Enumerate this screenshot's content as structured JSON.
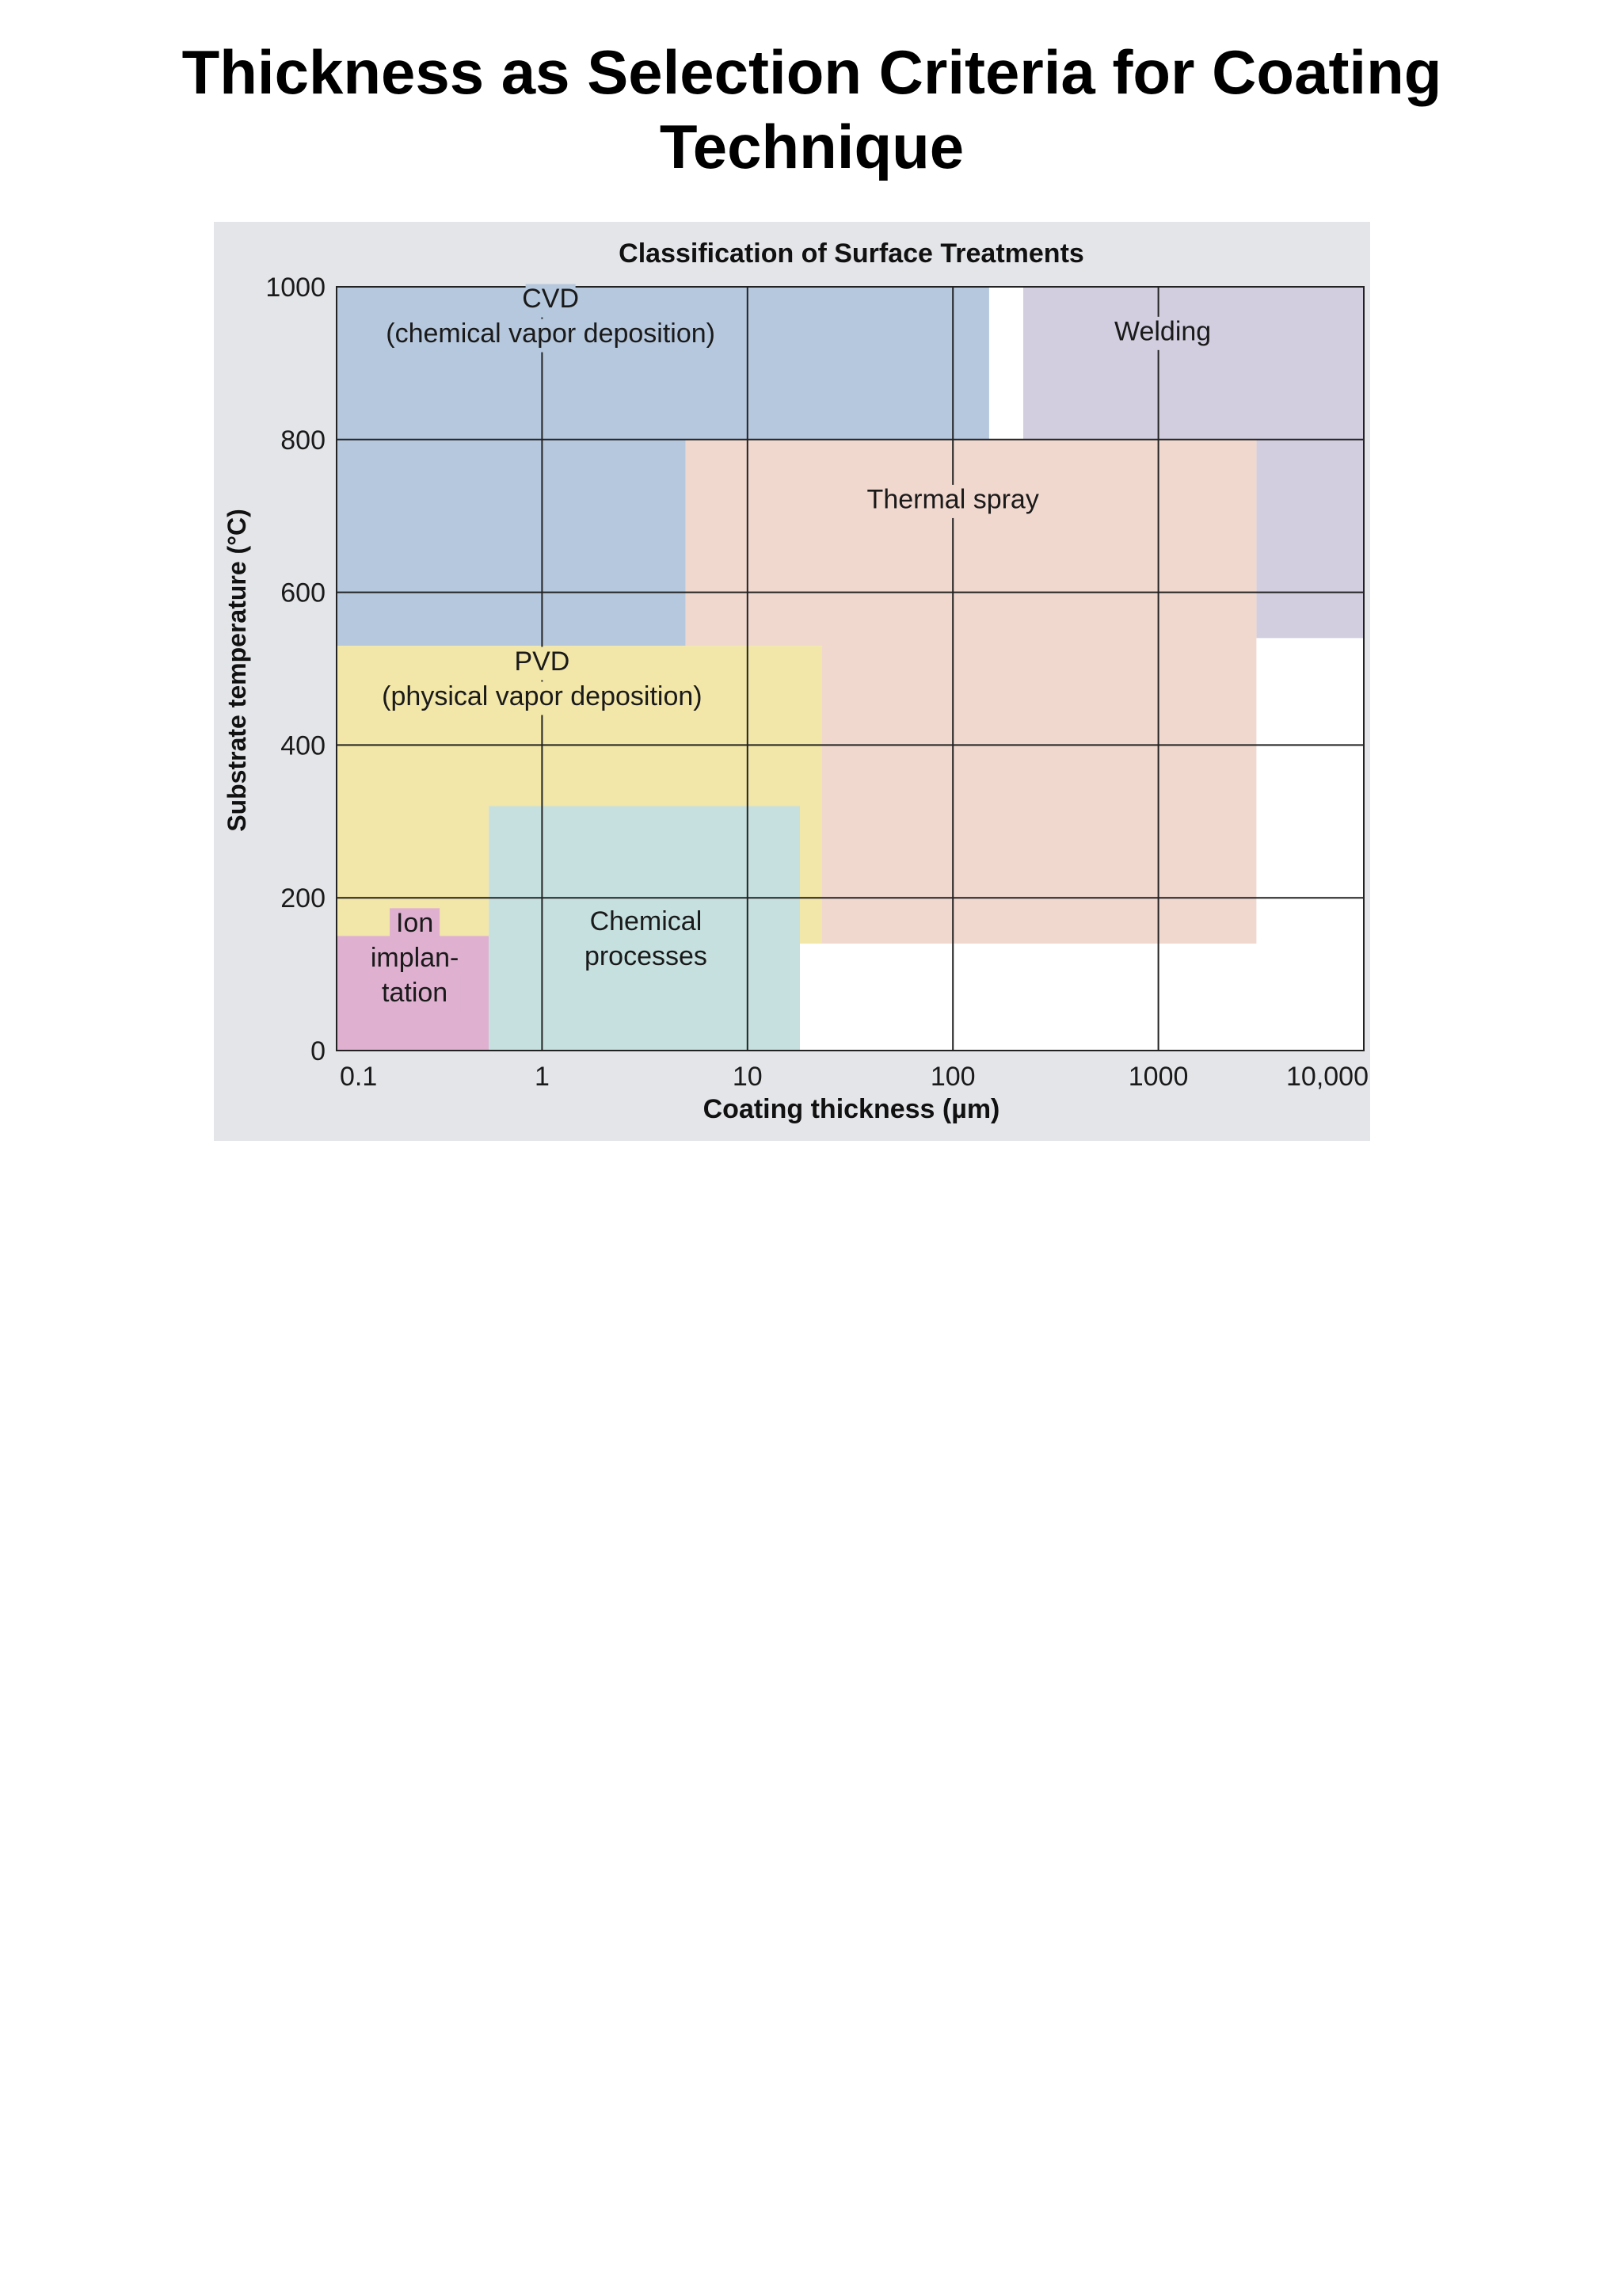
{
  "page": {
    "title": "Thickness as Selection Criteria for Coating Technique"
  },
  "chart_data": {
    "type": "area",
    "title": "Classification of Surface Treatments",
    "xlabel": "Coating thickness (µm)",
    "ylabel": "Substrate temperature (°C)",
    "x_scale": "log",
    "xlim": [
      0.1,
      10000
    ],
    "ylim": [
      0,
      1000
    ],
    "x_ticks": [
      {
        "value": 0.1,
        "label": "0.1"
      },
      {
        "value": 1,
        "label": "1"
      },
      {
        "value": 10,
        "label": "10"
      },
      {
        "value": 100,
        "label": "100"
      },
      {
        "value": 1000,
        "label": "1000"
      },
      {
        "value": 10000,
        "label": "10,000"
      }
    ],
    "y_ticks": [
      {
        "value": 0,
        "label": "0"
      },
      {
        "value": 200,
        "label": "200"
      },
      {
        "value": 400,
        "label": "400"
      },
      {
        "value": 600,
        "label": "600"
      },
      {
        "value": 800,
        "label": "800"
      },
      {
        "value": 1000,
        "label": "1000"
      }
    ],
    "grid": true,
    "colors": {
      "figure_background": "#e4e5e9",
      "plot_background": "#ffffff",
      "grid": "#222222",
      "cvd": "#b6c8de",
      "welding": "#d2cedf",
      "thermal_spray": "#f0d8cf",
      "pvd": "#f2e6a8",
      "chemical": "#c6e0e0",
      "ion": "#dfb0d0"
    },
    "regions": [
      {
        "id": "cvd",
        "lines": [
          "CVD",
          "(chemical vapor deposition)"
        ],
        "color_key": "cvd",
        "polygon": [
          [
            0.1,
            1000
          ],
          [
            150,
            1000
          ],
          [
            150,
            800
          ],
          [
            5,
            800
          ],
          [
            5,
            530
          ],
          [
            0.1,
            530
          ]
        ],
        "label_at": [
          1.1,
          960
        ]
      },
      {
        "id": "welding",
        "lines": [
          "Welding"
        ],
        "color_key": "welding",
        "polygon": [
          [
            220,
            1000
          ],
          [
            10000,
            1000
          ],
          [
            10000,
            540
          ],
          [
            3000,
            540
          ],
          [
            3000,
            800
          ],
          [
            220,
            800
          ]
        ],
        "label_at": [
          1050,
          940
        ]
      },
      {
        "id": "thermal-spray",
        "lines": [
          "Thermal spray"
        ],
        "color_key": "thermal_spray",
        "polygon": [
          [
            5,
            800
          ],
          [
            3000,
            800
          ],
          [
            3000,
            140
          ],
          [
            23,
            140
          ],
          [
            23,
            530
          ],
          [
            5,
            530
          ]
        ],
        "label_at": [
          100,
          720
        ]
      },
      {
        "id": "pvd",
        "lines": [
          "PVD",
          "(physical vapor deposition)"
        ],
        "color_key": "pvd",
        "polygon": [
          [
            0.1,
            530
          ],
          [
            23,
            530
          ],
          [
            23,
            140
          ],
          [
            18,
            140
          ],
          [
            18,
            320
          ],
          [
            0.55,
            320
          ],
          [
            0.55,
            150
          ],
          [
            0.1,
            150
          ]
        ],
        "label_at": [
          1,
          485
        ]
      },
      {
        "id": "chemical",
        "lines": [
          "Chemical",
          "processes"
        ],
        "color_key": "chemical",
        "polygon": [
          [
            0.55,
            320
          ],
          [
            18,
            320
          ],
          [
            18,
            0
          ],
          [
            0.55,
            0
          ]
        ],
        "label_at": [
          3.2,
          145
        ]
      },
      {
        "id": "ion",
        "lines": [
          "Ion",
          "implan-",
          "tation"
        ],
        "color_key": "ion",
        "polygon": [
          [
            0.1,
            150
          ],
          [
            0.55,
            150
          ],
          [
            0.55,
            0
          ],
          [
            0.1,
            0
          ]
        ],
        "label_at": [
          0.24,
          120
        ]
      }
    ]
  }
}
